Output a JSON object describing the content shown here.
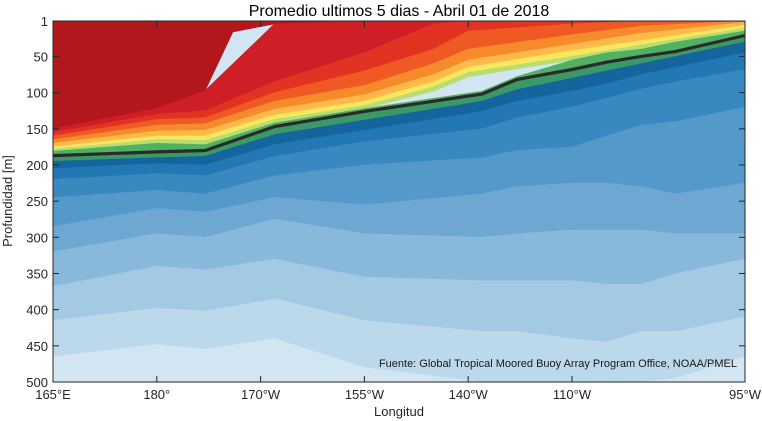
{
  "chart_data": {
    "type": "contour",
    "title": "Promedio ultimos 5 dias - Abril 01 de 2018",
    "xlabel": "Longitud",
    "ylabel": "Profundidad [m]",
    "credit": "Fuente: Global Tropical Moored Buoy Array Program Office, NOAA/PMEL",
    "xlim": [
      165,
      265
    ],
    "ylim": [
      1,
      500
    ],
    "y_inverted": true,
    "x_ticks": [
      {
        "value": 165,
        "label": "165°E"
      },
      {
        "value": 180,
        "label": "180°"
      },
      {
        "value": 195,
        "label": "170°W"
      },
      {
        "value": 210,
        "label": "155°W"
      },
      {
        "value": 225,
        "label": "140°W"
      },
      {
        "value": 240,
        "label": "110°W"
      },
      {
        "value": 265,
        "label": "95°W"
      }
    ],
    "y_ticks": [
      {
        "value": 1,
        "label": "1"
      },
      {
        "value": 50,
        "label": "50"
      },
      {
        "value": 100,
        "label": "100"
      },
      {
        "value": 150,
        "label": "150"
      },
      {
        "value": 200,
        "label": "200"
      },
      {
        "value": 250,
        "label": "250"
      },
      {
        "value": 300,
        "label": "300"
      },
      {
        "value": 350,
        "label": "350"
      },
      {
        "value": 400,
        "label": "400"
      },
      {
        "value": 450,
        "label": "450"
      },
      {
        "value": 500,
        "label": "500"
      }
    ],
    "highlight_contour": {
      "x": [
        165,
        180,
        187,
        197,
        210,
        227,
        232,
        240,
        245,
        250,
        255,
        265
      ],
      "depth": [
        187,
        182,
        180,
        147,
        126,
        102,
        82,
        68,
        58,
        50,
        43,
        21
      ],
      "color": "#2a2a2a"
    },
    "bands": [
      {
        "color": "#b2171c",
        "x": [
          165,
          180,
          187,
          191,
          197,
          210,
          265
        ],
        "top": [
          1,
          1,
          1,
          1,
          1,
          1,
          1
        ],
        "bottom": [
          150,
          122,
          97,
          16,
          5,
          1,
          1
        ]
      },
      {
        "color": "#cf1e26",
        "x": [
          165,
          180,
          187,
          197,
          210,
          220,
          225,
          240,
          250,
          265
        ],
        "top": [
          150,
          122,
          97,
          5,
          1,
          1,
          1,
          1,
          1,
          1
        ],
        "bottom": [
          155,
          130,
          125,
          85,
          45,
          5,
          1,
          1,
          1,
          1
        ]
      },
      {
        "color": "#e23322",
        "x": [
          165,
          180,
          187,
          197,
          210,
          220,
          225,
          240,
          250,
          265
        ],
        "top": [
          155,
          130,
          125,
          85,
          45,
          5,
          1,
          1,
          1,
          1
        ],
        "bottom": [
          160,
          137,
          135,
          100,
          70,
          40,
          15,
          5,
          1,
          1
        ]
      },
      {
        "color": "#ef5a24",
        "x": [
          165,
          180,
          187,
          197,
          210,
          220,
          225,
          240,
          250,
          265
        ],
        "top": [
          160,
          137,
          135,
          100,
          70,
          40,
          15,
          5,
          1,
          1
        ],
        "bottom": [
          165,
          145,
          143,
          112,
          90,
          60,
          40,
          20,
          8,
          1
        ]
      },
      {
        "color": "#f78b2c",
        "x": [
          165,
          180,
          187,
          197,
          210,
          220,
          225,
          240,
          250,
          265
        ],
        "top": [
          165,
          145,
          143,
          112,
          90,
          60,
          40,
          20,
          8,
          1
        ],
        "bottom": [
          170,
          153,
          152,
          123,
          103,
          75,
          55,
          33,
          18,
          3
        ]
      },
      {
        "color": "#fdb94a",
        "x": [
          165,
          180,
          187,
          197,
          210,
          220,
          225,
          240,
          250,
          265
        ],
        "top": [
          170,
          153,
          152,
          123,
          103,
          75,
          55,
          33,
          18,
          3
        ],
        "bottom": [
          175,
          160,
          160,
          131,
          112,
          85,
          65,
          42,
          28,
          7
        ]
      },
      {
        "color": "#f7e85e",
        "x": [
          165,
          180,
          187,
          197,
          210,
          220,
          225,
          240,
          250,
          265
        ],
        "top": [
          175,
          160,
          160,
          131,
          112,
          85,
          65,
          42,
          28,
          7
        ],
        "bottom": [
          178,
          165,
          166,
          137,
          118,
          92,
          72,
          50,
          34,
          11
        ]
      },
      {
        "color": "#b9dd74",
        "x": [
          165,
          180,
          187,
          197,
          210,
          220,
          225,
          240,
          250,
          265
        ],
        "top": [
          178,
          165,
          166,
          137,
          118,
          92,
          72,
          50,
          34,
          11
        ],
        "bottom": [
          181,
          170,
          172,
          142,
          122,
          98,
          78,
          55,
          40,
          15
        ]
      },
      {
        "color": "#52b062",
        "x": [
          165,
          180,
          187,
          197,
          210,
          227,
          232,
          240,
          245,
          250,
          255,
          265
        ],
        "top": [
          181,
          170,
          172,
          142,
          122,
          98,
          78,
          55,
          45,
          40,
          30,
          15
        ],
        "bottom": [
          187,
          182,
          180,
          147,
          126,
          102,
          82,
          68,
          58,
          50,
          43,
          21
        ]
      },
      {
        "color": "#3a9a67",
        "x": [
          165,
          180,
          187,
          197,
          210,
          227,
          232,
          240,
          245,
          250,
          255,
          265
        ],
        "top": [
          187,
          182,
          180,
          147,
          126,
          102,
          82,
          68,
          58,
          50,
          43,
          21
        ],
        "bottom": [
          195,
          190,
          188,
          158,
          138,
          112,
          96,
          80,
          70,
          60,
          50,
          30
        ]
      },
      {
        "color": "#14659e",
        "x": [
          165,
          180,
          187,
          197,
          210,
          227,
          232,
          240,
          245,
          250,
          255,
          265
        ],
        "top": [
          195,
          190,
          188,
          158,
          138,
          112,
          96,
          80,
          70,
          60,
          50,
          30
        ],
        "bottom": [
          205,
          198,
          200,
          172,
          152,
          126,
          112,
          98,
          88,
          75,
          65,
          45
        ]
      },
      {
        "color": "#2377b3",
        "x": [
          165,
          180,
          187,
          197,
          210,
          227,
          232,
          240,
          245,
          250,
          255,
          265
        ],
        "top": [
          205,
          198,
          200,
          172,
          152,
          126,
          112,
          98,
          88,
          75,
          65,
          45
        ],
        "bottom": [
          220,
          212,
          215,
          188,
          168,
          150,
          135,
          120,
          108,
          95,
          85,
          68
        ]
      },
      {
        "color": "#3a88c0",
        "x": [
          165,
          180,
          187,
          197,
          210,
          227,
          232,
          240,
          245,
          250,
          255,
          265
        ],
        "top": [
          220,
          212,
          215,
          188,
          168,
          150,
          135,
          120,
          108,
          95,
          85,
          68
        ],
        "bottom": [
          245,
          235,
          240,
          215,
          200,
          190,
          180,
          175,
          160,
          145,
          140,
          120
        ]
      },
      {
        "color": "#5399c9",
        "x": [
          165,
          180,
          187,
          197,
          210,
          227,
          232,
          240,
          245,
          250,
          255,
          265
        ],
        "top": [
          245,
          235,
          240,
          215,
          200,
          190,
          180,
          175,
          160,
          145,
          140,
          120
        ],
        "bottom": [
          285,
          260,
          265,
          245,
          255,
          240,
          230,
          225,
          225,
          230,
          240,
          225
        ]
      },
      {
        "color": "#6ea8d2",
        "x": [
          165,
          180,
          187,
          197,
          210,
          227,
          232,
          240,
          245,
          250,
          255,
          265
        ],
        "top": [
          285,
          260,
          265,
          245,
          255,
          240,
          230,
          225,
          225,
          230,
          240,
          225
        ],
        "bottom": [
          320,
          295,
          300,
          275,
          295,
          300,
          295,
          290,
          290,
          290,
          295,
          295
        ]
      },
      {
        "color": "#88b9db",
        "x": [
          165,
          180,
          187,
          197,
          210,
          227,
          232,
          240,
          245,
          250,
          255,
          265
        ],
        "top": [
          320,
          295,
          300,
          275,
          295,
          300,
          295,
          290,
          290,
          290,
          295,
          295
        ],
        "bottom": [
          368,
          340,
          345,
          330,
          355,
          360,
          360,
          360,
          365,
          365,
          350,
          330
        ]
      },
      {
        "color": "#a3c9e3",
        "x": [
          165,
          180,
          187,
          197,
          210,
          227,
          232,
          240,
          245,
          250,
          255,
          265
        ],
        "top": [
          368,
          340,
          345,
          330,
          355,
          360,
          360,
          360,
          365,
          365,
          350,
          330
        ],
        "bottom": [
          415,
          398,
          402,
          385,
          415,
          430,
          430,
          440,
          445,
          430,
          430,
          410
        ]
      },
      {
        "color": "#bcd8eb",
        "x": [
          165,
          180,
          187,
          197,
          210,
          227,
          232,
          240,
          245,
          250,
          255,
          265
        ],
        "top": [
          415,
          398,
          402,
          385,
          415,
          430,
          430,
          440,
          445,
          430,
          430,
          410
        ],
        "bottom": [
          465,
          448,
          455,
          440,
          480,
          500,
          500,
          500,
          500,
          500,
          495,
          465
        ]
      },
      {
        "color": "#d2e5f2",
        "x": [
          165,
          180,
          187,
          197,
          210,
          227,
          232,
          240,
          245,
          250,
          255,
          265
        ],
        "top": [
          465,
          448,
          455,
          440,
          480,
          500,
          500,
          500,
          500,
          500,
          495,
          465
        ],
        "bottom": [
          500,
          500,
          500,
          500,
          500,
          500,
          500,
          500,
          500,
          500,
          500,
          500
        ]
      }
    ]
  }
}
